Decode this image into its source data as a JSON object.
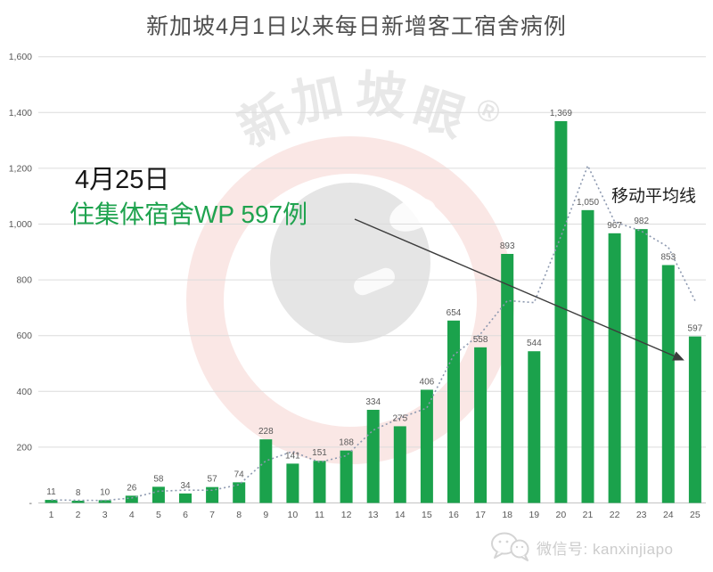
{
  "page": {
    "title": "新加坡4月1日以来每日新增客工宿舍病例"
  },
  "annotation": {
    "date_line": "4月25日",
    "detail_line": "住集体宿舍WP 597例",
    "detail_color": "#1fa34f"
  },
  "watermark": {
    "chars": [
      "新",
      "加",
      "坡",
      "眼"
    ],
    "registered": "®"
  },
  "footer": {
    "wechat_id": "微信号: kanxinjiapo"
  },
  "chart_data": {
    "type": "bar",
    "title": "新加坡4月1日以来每日新增客工宿舍病例",
    "categories": [
      "1",
      "2",
      "3",
      "4",
      "5",
      "6",
      "7",
      "8",
      "9",
      "10",
      "11",
      "12",
      "13",
      "14",
      "15",
      "16",
      "17",
      "18",
      "19",
      "20",
      "21",
      "22",
      "23",
      "24",
      "25"
    ],
    "values": [
      11,
      8,
      10,
      26,
      58,
      34,
      57,
      74,
      228,
      141,
      151,
      188,
      334,
      275,
      406,
      654,
      558,
      893,
      544,
      1369,
      1050,
      967,
      982,
      853,
      597
    ],
    "value_labels": [
      "11",
      "8",
      "10",
      "26",
      "58",
      "34",
      "57",
      "74",
      "228",
      "141",
      "151",
      "188",
      "334",
      "275",
      "406",
      "654",
      "558",
      "893",
      "544",
      "1,369",
      "1,050",
      "967",
      "982",
      "853",
      "597"
    ],
    "moving_average": {
      "label": "移动平均线",
      "values": [
        11,
        9.5,
        9,
        18,
        42,
        46,
        45.5,
        65.5,
        151,
        184.5,
        146,
        169.5,
        261,
        304.5,
        340.5,
        530,
        606,
        725.5,
        718.5,
        956.5,
        1209.5,
        1008.5,
        974.5,
        917.5,
        725
      ]
    },
    "xlabel": "",
    "ylabel": "",
    "ylim": [
      0,
      1600
    ],
    "ytick_step": 200,
    "ytick_labels": [
      "-",
      "200",
      "400",
      "600",
      "800",
      "1,000",
      "1,200",
      "1,400",
      "1,600"
    ],
    "grid": true,
    "legend_position": "none",
    "bar_color": "#1ba24c",
    "ma_color": "#8d99b0",
    "value_label_color": "#595959",
    "tick_color": "#595959",
    "gridline_color": "#dcdcdc",
    "arrow_color": "#3c3c3c"
  }
}
